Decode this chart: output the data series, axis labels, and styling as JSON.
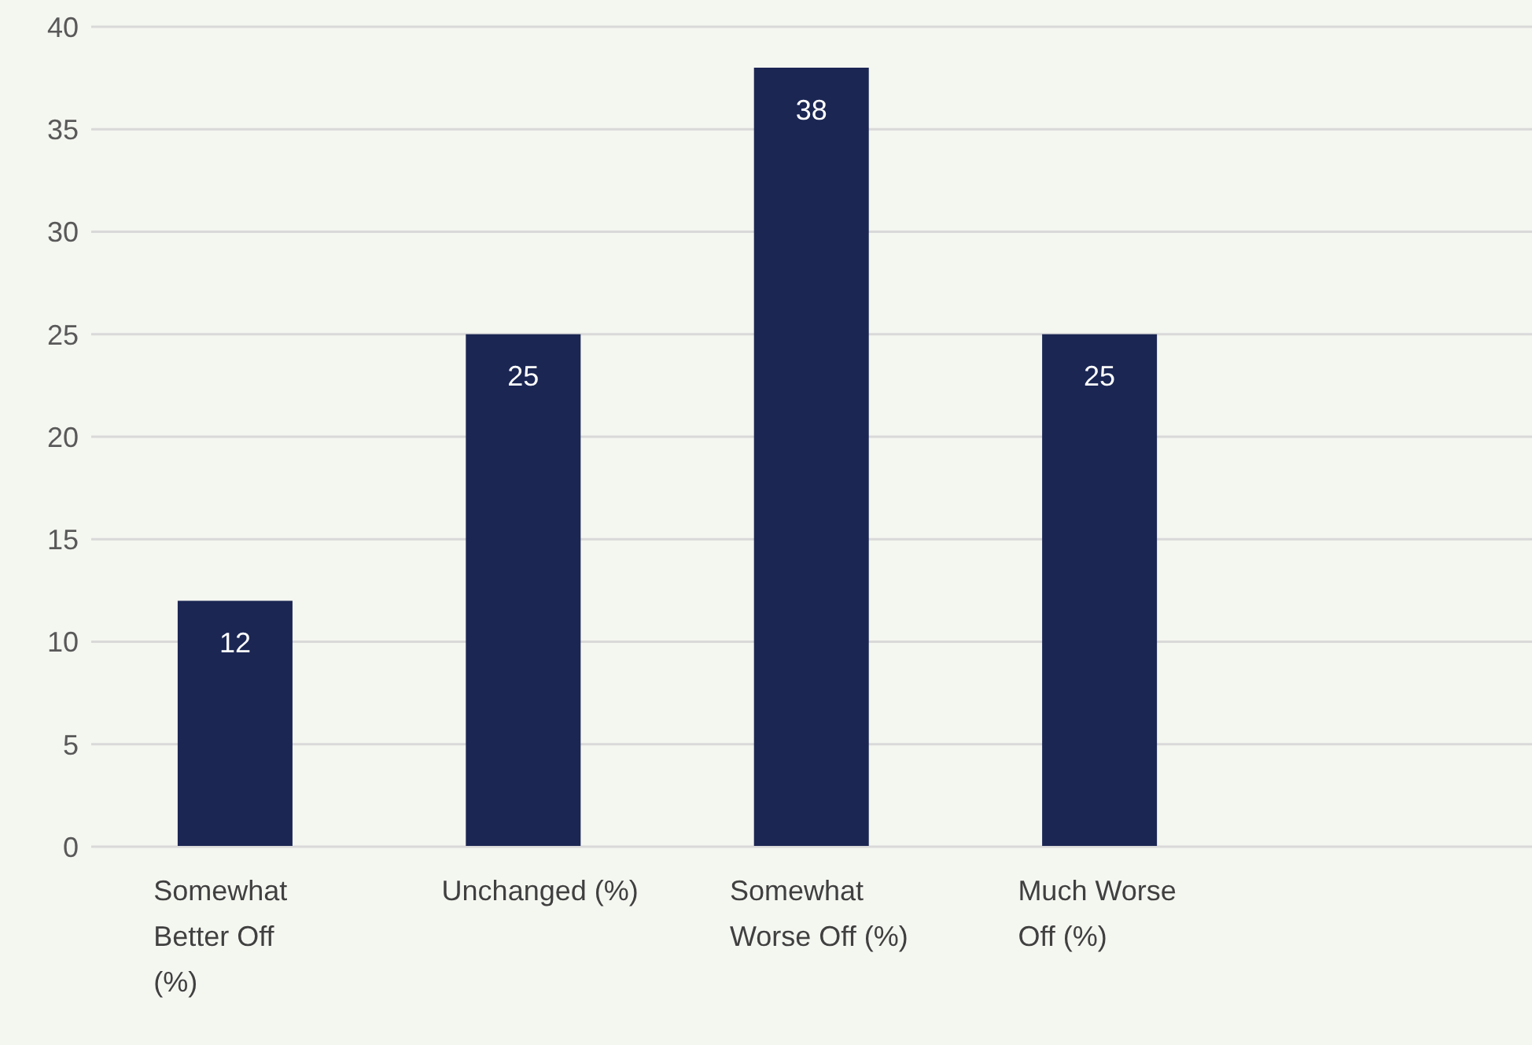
{
  "chart_data": {
    "type": "bar",
    "categories": [
      "Somewhat Better Off (%)",
      "Unchanged (%)",
      "Somewhat Worse Off (%)",
      "Much Worse Off (%)",
      null
    ],
    "values": [
      12,
      25,
      38,
      25,
      null
    ],
    "color": "#1b2653",
    "ylim": [
      0,
      40
    ],
    "yticks": [
      0,
      5,
      10,
      15,
      20,
      25,
      30,
      35,
      40
    ],
    "grid": "y",
    "data_labels": true
  }
}
